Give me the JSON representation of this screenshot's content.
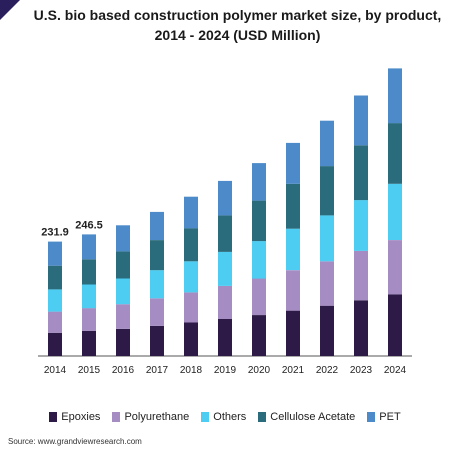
{
  "title_line1": "U.S. bio based construction polymer market size, by product,",
  "title_line2": "2014 - 2024 (USD Million)",
  "source": "Source: www.grandviewresearch.com",
  "chart_data": {
    "type": "bar",
    "stacked": true,
    "title": "U.S. bio based construction polymer market size, by product, 2014 - 2024 (USD Million)",
    "categories": [
      "2014",
      "2015",
      "2016",
      "2017",
      "2018",
      "2019",
      "2020",
      "2021",
      "2022",
      "2023",
      "2024"
    ],
    "series": [
      {
        "name": "Epoxies",
        "color": "#2e1a47",
        "values": [
          47,
          51,
          55,
          61,
          68,
          75,
          83,
          92,
          102,
          113,
          125
        ]
      },
      {
        "name": "Polyurethane",
        "color": "#a58dc4",
        "values": [
          43,
          46,
          50,
          56,
          61,
          67,
          74,
          82,
          90,
          100,
          110
        ]
      },
      {
        "name": "Others",
        "color": "#4dcdf2",
        "values": [
          45,
          48,
          52,
          57,
          63,
          69,
          76,
          84,
          93,
          103,
          114
        ]
      },
      {
        "name": "Cellulose Acetate",
        "color": "#2a6b7c",
        "values": [
          48,
          51,
          55,
          61,
          67,
          74,
          82,
          91,
          100,
          111,
          123
        ]
      },
      {
        "name": "PET",
        "color": "#4d8ac9",
        "values": [
          48.9,
          50.5,
          53,
          57,
          64,
          70,
          76,
          83,
          92,
          101,
          111
        ]
      }
    ],
    "data_labels": [
      {
        "category": "2014",
        "text": "231.9"
      },
      {
        "category": "2015",
        "text": "246.5"
      }
    ],
    "ylim": [
      0,
      600
    ],
    "legend": "bottom",
    "grid": false
  }
}
